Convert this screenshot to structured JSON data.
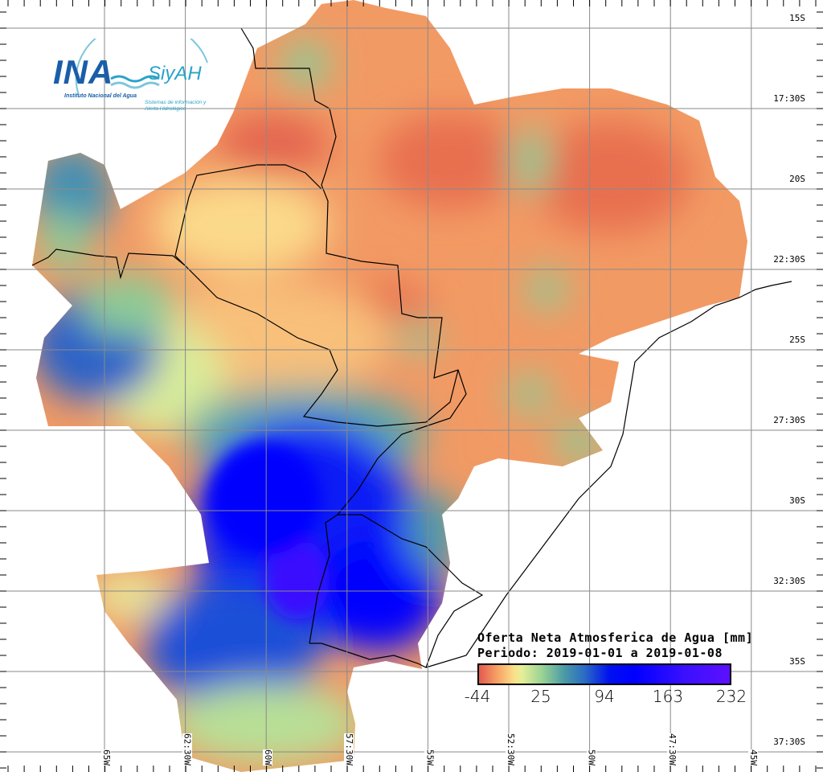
{
  "logo": {
    "brand": "INA",
    "product": "SiyAH",
    "institution": "Instituto Nacional del Agua",
    "system": "Sistemas de información y Alerta Hidrológico"
  },
  "legend": {
    "title_line1": "Oferta Neta Atmosferica de Agua [mm]",
    "title_line2": "Periodo: 2019-01-01 a 2019-01-08",
    "ticks": [
      "-44",
      "25",
      "94",
      "163",
      "232"
    ],
    "min": -44,
    "max": 232,
    "colors": [
      "#e25a4f",
      "#f8a868",
      "#fbe08a",
      "#9bd394",
      "#4b9aa5",
      "#2b6cc4",
      "#0000ff",
      "#5d10ff"
    ]
  },
  "lat_labels": [
    "15S",
    "17:30S",
    "20S",
    "22:30S",
    "25S",
    "27:30S",
    "30S",
    "32:30S",
    "35S",
    "37:30S"
  ],
  "lon_labels": [
    "65W",
    "62:30W",
    "60W",
    "57:30W",
    "55W",
    "52:30W",
    "50W",
    "47:30W",
    "45W"
  ],
  "colors": {
    "grid": "#8a8a8a",
    "border": "#000000",
    "dry": "#f0885a",
    "wet": "#0000ff"
  }
}
